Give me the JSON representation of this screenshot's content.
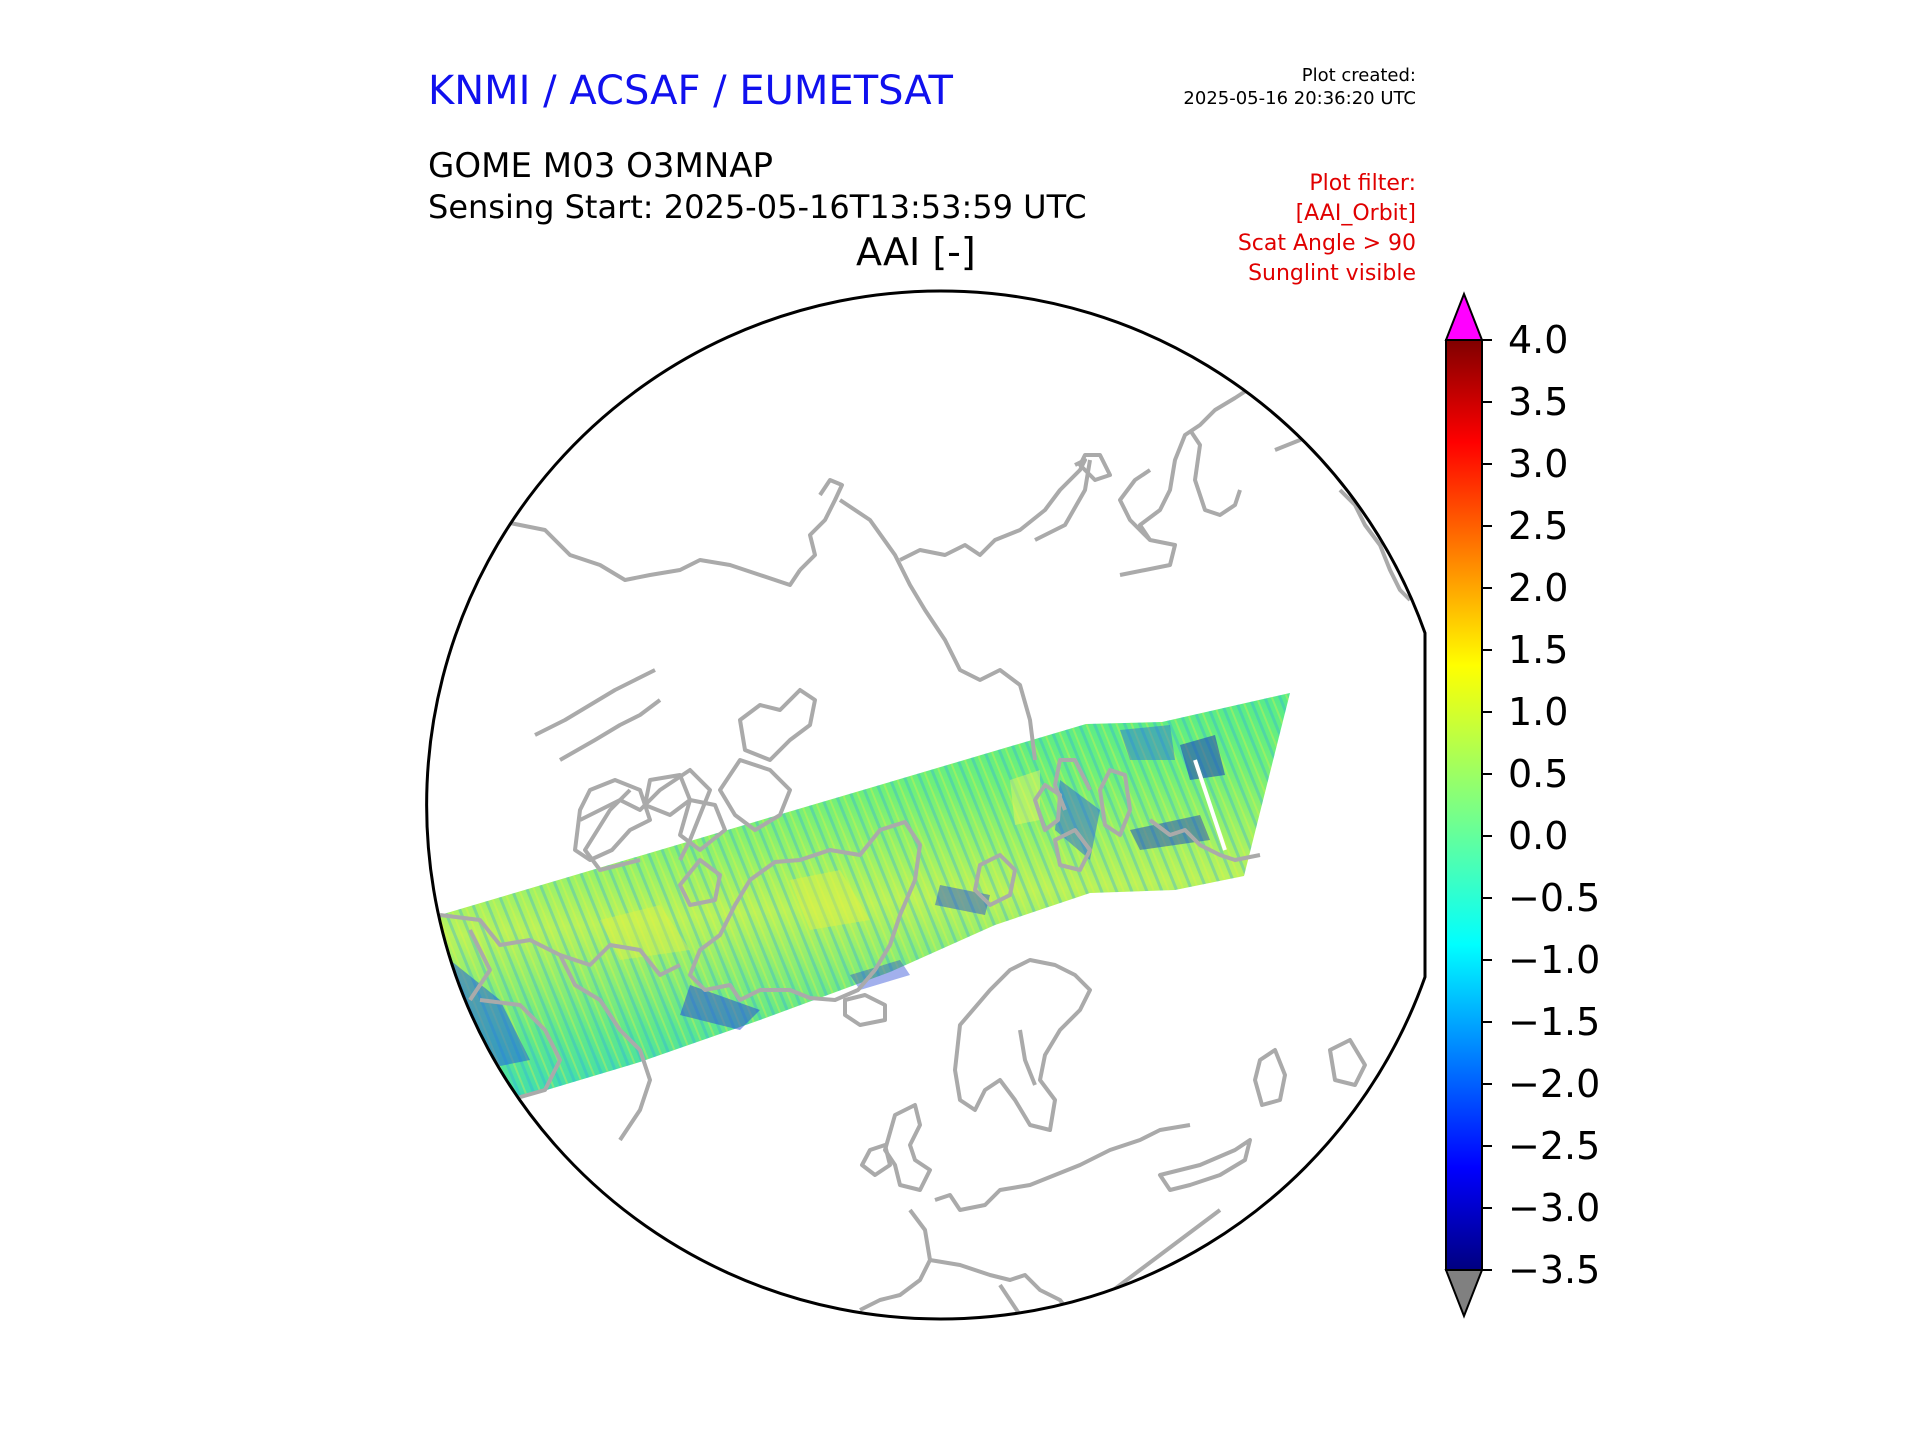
{
  "header": {
    "org": "KNMI / ACSAF / EUMETSAT",
    "created_label": "Plot created:",
    "created_time": "2025-05-16 20:36:20 UTC",
    "product": "GOME M03 O3MNAP",
    "sensing": "Sensing Start: 2025-05-16T13:53:59 UTC",
    "variable": "AAI [-]"
  },
  "filter": {
    "label": "Plot filter:",
    "lines": [
      "[AAI_Orbit]",
      "Scat Angle > 90",
      "Sunglint visible"
    ]
  },
  "colors": {
    "org_title": "#1010ee",
    "filter_text": "#e00000",
    "coastline": "#aaaaaa",
    "over_max": "#ff00ff",
    "under_min": "#808080"
  },
  "map": {
    "projection": "north-polar-stereographic",
    "features": [
      "coastlines",
      "satellite-swath"
    ]
  },
  "colorbar": {
    "min": -3.5,
    "max": 4.0,
    "colormap": "jet",
    "extend": "both",
    "ticks": [
      "4.0",
      "3.5",
      "3.0",
      "2.5",
      "2.0",
      "1.5",
      "1.0",
      "0.5",
      "0.0",
      "−0.5",
      "−1.0",
      "−1.5",
      "−2.0",
      "−2.5",
      "−3.0",
      "−3.5"
    ],
    "tick_values": [
      4.0,
      3.5,
      3.0,
      2.5,
      2.0,
      1.5,
      1.0,
      0.5,
      0.0,
      -0.5,
      -1.0,
      -1.5,
      -2.0,
      -2.5,
      -3.0,
      -3.5
    ]
  }
}
